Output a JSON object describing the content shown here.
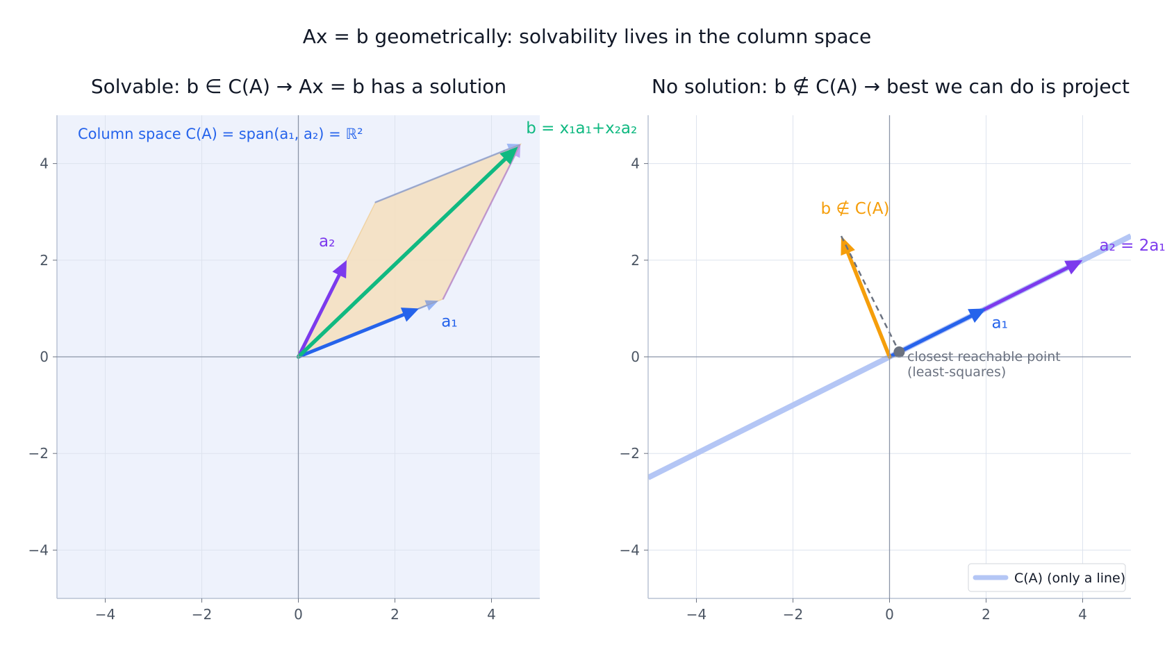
{
  "figure": {
    "suptitle": "Ax = b geometrically: solvability lives in the column space"
  },
  "colors": {
    "blue": "#2563eb",
    "purple": "#7c3aed",
    "green": "#10b981",
    "orange": "#f59e0b",
    "gray": "#6b7280",
    "span_fill": "#eef2fc",
    "line_fill": "#b4c6f5",
    "parallelogram": "#f5dfbd"
  },
  "chart_data": [
    {
      "type": "vector-plot",
      "title": "Solvable:  b ∈ C(A)  →  Ax = b has a solution",
      "xlim": [
        -5,
        5
      ],
      "ylim": [
        -5,
        5
      ],
      "xticks": [
        "−4",
        "−2",
        "0",
        "2",
        "4"
      ],
      "yticks": [
        "−4",
        "−2",
        "0",
        "2",
        "4"
      ],
      "xtick_values": [
        -4,
        -2,
        0,
        2,
        4
      ],
      "ytick_values": [
        -4,
        -2,
        0,
        2,
        4
      ],
      "grid": true,
      "column_space_label": "Column space  C(A) = span(a₁, a₂) = ℝ²",
      "vectors": [
        {
          "label": "a₁",
          "x": 2.5,
          "y": 1.0,
          "color": "blue"
        },
        {
          "label": "a₂",
          "x": 1.0,
          "y": 2.0,
          "color": "purple"
        },
        {
          "label": "b = x₁a₁+x₂a₂",
          "x": 4.6,
          "y": 4.4,
          "color": "green"
        }
      ],
      "parallelogram": [
        [
          0,
          0
        ],
        [
          3.0,
          1.2
        ],
        [
          4.6,
          4.4
        ],
        [
          1.6,
          3.2
        ]
      ],
      "ghost_vectors": [
        {
          "from": [
            1.6,
            3.2
          ],
          "to": [
            4.6,
            4.4
          ]
        },
        {
          "from": [
            3.0,
            1.2
          ],
          "to": [
            4.6,
            4.4
          ]
        }
      ]
    },
    {
      "type": "vector-plot",
      "title": "No solution:  b ∉ C(A)  →  best we can do is project",
      "xlim": [
        -5,
        5
      ],
      "ylim": [
        -5,
        5
      ],
      "xticks": [
        "−4",
        "−2",
        "0",
        "2",
        "4"
      ],
      "yticks": [
        "−4",
        "−2",
        "0",
        "2",
        "4"
      ],
      "xtick_values": [
        -4,
        -2,
        0,
        2,
        4
      ],
      "ytick_values": [
        -4,
        -2,
        0,
        2,
        4
      ],
      "grid": true,
      "line": {
        "slope": 0.5,
        "legend": "C(A)  (only a line)",
        "legend_position": "lower-right"
      },
      "vectors": [
        {
          "label": "a₂ = 2a₁",
          "x": 4.0,
          "y": 2.0,
          "color": "purple"
        },
        {
          "label": "a₁",
          "x": 2.0,
          "y": 1.0,
          "color": "blue"
        },
        {
          "label": "b ∉ C(A)",
          "x": -1.0,
          "y": 2.5,
          "color": "orange"
        }
      ],
      "projection": {
        "x": 0.2,
        "y": 0.1,
        "label": "closest reachable point",
        "label2": "(least-squares)"
      }
    }
  ]
}
